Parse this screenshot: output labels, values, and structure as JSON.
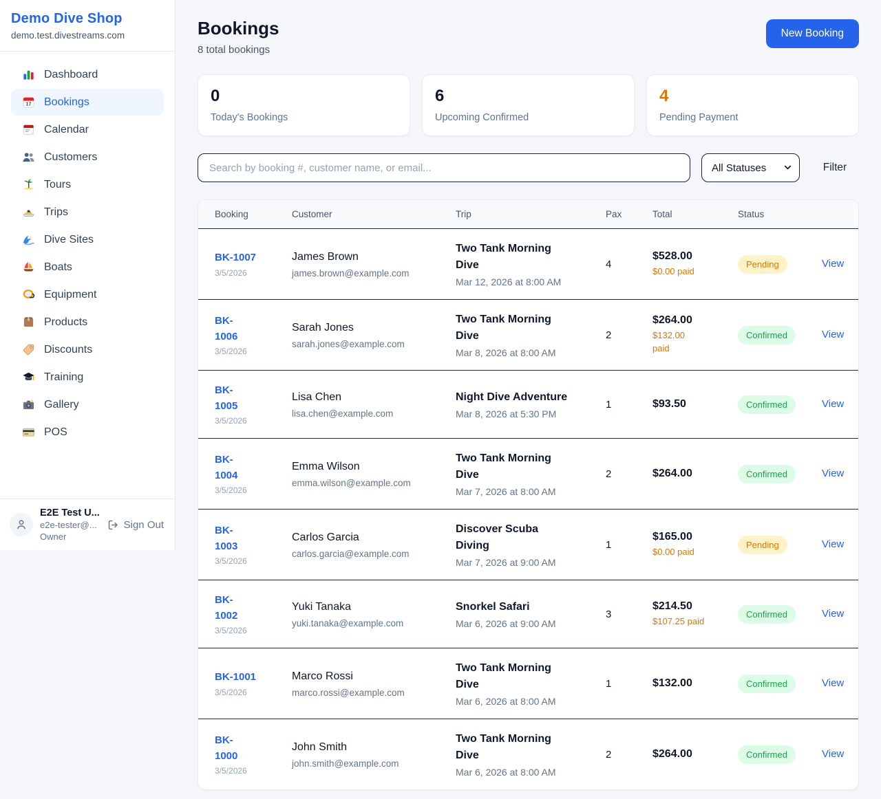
{
  "sidebar": {
    "brand": {
      "name": "Demo Dive Shop",
      "domain": "demo.test.divestreams.com"
    },
    "items": [
      {
        "label": "Dashboard",
        "icon": "bar-chart",
        "active": false
      },
      {
        "label": "Bookings",
        "icon": "calendar-date",
        "active": true
      },
      {
        "label": "Calendar",
        "icon": "tear-calendar",
        "active": false
      },
      {
        "label": "Customers",
        "icon": "users",
        "active": false
      },
      {
        "label": "Tours",
        "icon": "palm-island",
        "active": false
      },
      {
        "label": "Trips",
        "icon": "speedboat",
        "active": false
      },
      {
        "label": "Dive Sites",
        "icon": "wave",
        "active": false
      },
      {
        "label": "Boats",
        "icon": "sailboat",
        "active": false
      },
      {
        "label": "Equipment",
        "icon": "diving-mask",
        "active": false
      },
      {
        "label": "Products",
        "icon": "package-box",
        "active": false
      },
      {
        "label": "Discounts",
        "icon": "price-tag",
        "active": false
      },
      {
        "label": "Training",
        "icon": "graduation-cap",
        "active": false
      },
      {
        "label": "Gallery",
        "icon": "camera-flash",
        "active": false
      },
      {
        "label": "POS",
        "icon": "credit-card",
        "active": false
      }
    ],
    "user": {
      "name": "E2E Test U...",
      "email": "e2e-tester@...",
      "role": "Owner",
      "sign_out_label": "Sign Out"
    }
  },
  "header": {
    "title": "Bookings",
    "subtitle": "8 total bookings",
    "new_booking_label": "New Booking"
  },
  "stats": [
    {
      "value": "0",
      "label": "Today's Bookings",
      "highlight": false
    },
    {
      "value": "6",
      "label": "Upcoming Confirmed",
      "highlight": false
    },
    {
      "value": "4",
      "label": "Pending Payment",
      "highlight": true
    }
  ],
  "filters": {
    "search_placeholder": "Search by booking #, customer name, or email...",
    "status_select": "All Statuses",
    "filter_label": "Filter"
  },
  "table": {
    "columns": [
      "Booking",
      "Customer",
      "Trip",
      "Pax",
      "Total",
      "Status"
    ],
    "view_label": "View",
    "rows": [
      {
        "id": "BK-1007",
        "date": "3/5/2026",
        "customer": "James Brown",
        "email": "james.brown@example.com",
        "trip": "Two Tank Morning\nDive",
        "trip_datetime": "Mar 12, 2026 at 8:00 AM",
        "pax": "4",
        "total": "$528.00",
        "paid": "$0.00 paid",
        "status": "Pending"
      },
      {
        "id": "BK-\n1006",
        "date": "3/5/2026",
        "customer": "Sarah Jones",
        "email": "sarah.jones@example.com",
        "trip": "Two Tank Morning\nDive",
        "trip_datetime": "Mar 8, 2026 at 8:00 AM",
        "pax": "2",
        "total": "$264.00",
        "paid": "$132.00\npaid",
        "status": "Confirmed"
      },
      {
        "id": "BK-\n1005",
        "date": "3/5/2026",
        "customer": "Lisa Chen",
        "email": "lisa.chen@example.com",
        "trip": "Night Dive Adventure",
        "trip_datetime": "Mar 8, 2026 at 5:30 PM",
        "pax": "1",
        "total": "$93.50",
        "paid": "",
        "status": "Confirmed"
      },
      {
        "id": "BK-\n1004",
        "date": "3/5/2026",
        "customer": "Emma Wilson",
        "email": "emma.wilson@example.com",
        "trip": "Two Tank Morning\nDive",
        "trip_datetime": "Mar 7, 2026 at 8:00 AM",
        "pax": "2",
        "total": "$264.00",
        "paid": "",
        "status": "Confirmed"
      },
      {
        "id": "BK-\n1003",
        "date": "3/5/2026",
        "customer": "Carlos Garcia",
        "email": "carlos.garcia@example.com",
        "trip": "Discover Scuba\nDiving",
        "trip_datetime": "Mar 7, 2026 at 9:00 AM",
        "pax": "1",
        "total": "$165.00",
        "paid": "$0.00 paid",
        "status": "Pending"
      },
      {
        "id": "BK-\n1002",
        "date": "3/5/2026",
        "customer": "Yuki Tanaka",
        "email": "yuki.tanaka@example.com",
        "trip": "Snorkel Safari",
        "trip_datetime": "Mar 6, 2026 at 9:00 AM",
        "pax": "3",
        "total": "$214.50",
        "paid": "$107.25 paid",
        "status": "Confirmed"
      },
      {
        "id": "BK-1001",
        "date": "3/5/2026",
        "customer": "Marco Rossi",
        "email": "marco.rossi@example.com",
        "trip": "Two Tank Morning\nDive",
        "trip_datetime": "Mar 6, 2026 at 8:00 AM",
        "pax": "1",
        "total": "$132.00",
        "paid": "",
        "status": "Confirmed"
      },
      {
        "id": "BK-\n1000",
        "date": "3/5/2026",
        "customer": "John Smith",
        "email": "john.smith@example.com",
        "trip": "Two Tank Morning\nDive",
        "trip_datetime": "Mar 6, 2026 at 8:00 AM",
        "pax": "2",
        "total": "$264.00",
        "paid": "",
        "status": "Confirmed"
      }
    ]
  },
  "colors": {
    "brand_blue": "#2563eb",
    "pending_text": "#d97706",
    "pending_bg": "#fef3c7",
    "confirmed_text": "#16a34a",
    "confirmed_bg": "#dcfce7",
    "paid_orange": "#d97706",
    "stat_orange": "#d97706"
  }
}
